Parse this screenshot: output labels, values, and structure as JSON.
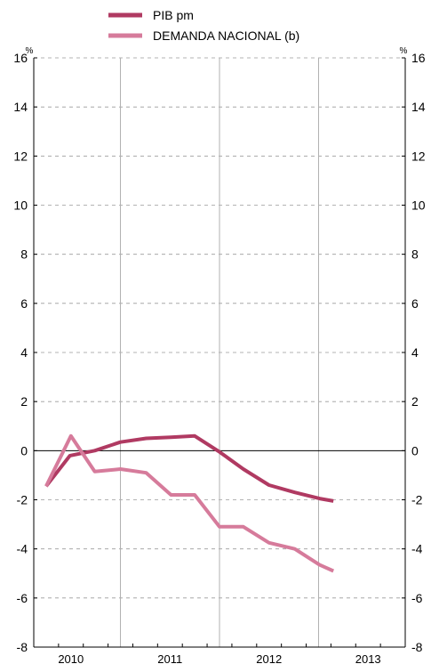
{
  "chart_data": {
    "type": "line",
    "y_unit_left": "%",
    "y_unit_right": "%",
    "ylim": [
      -8,
      16
    ],
    "yticks": [
      -8,
      -6,
      -4,
      -2,
      0,
      2,
      4,
      6,
      8,
      10,
      12,
      14,
      16
    ],
    "xlim": [
      2009.625,
      2013.375
    ],
    "year_labels": [
      "2010",
      "2011",
      "2012",
      "2013"
    ],
    "grid": "horizontal dashed, vertical solid at year boundaries",
    "legend_position": "top-center",
    "colors": {
      "pib": "#b03a62",
      "demanda": "#d67b9b",
      "grid": "#9b9b9b"
    },
    "series": [
      {
        "name": "PIB pm",
        "color": "#b03a62",
        "x": [
          2009.75,
          2009.99,
          2010.24,
          2010.5,
          2010.76,
          2011.01,
          2011.25,
          2011.5,
          2011.74,
          2012.0,
          2012.26,
          2012.51,
          2012.65
        ],
        "values": [
          -1.45,
          -0.2,
          0.0,
          0.35,
          0.5,
          0.55,
          0.6,
          -0.05,
          -0.75,
          -1.4,
          -1.7,
          -1.95,
          -2.05
        ]
      },
      {
        "name": "DEMANDA NACIONAL (b)",
        "color": "#d67b9b",
        "x": [
          2009.75,
          2010.0,
          2010.24,
          2010.5,
          2010.76,
          2011.01,
          2011.25,
          2011.5,
          2011.74,
          2012.0,
          2012.26,
          2012.51,
          2012.65
        ],
        "values": [
          -1.45,
          0.6,
          -0.85,
          -0.75,
          -0.9,
          -1.8,
          -1.8,
          -3.1,
          -3.1,
          -3.75,
          -4.0,
          -4.65,
          -4.9
        ]
      }
    ]
  }
}
